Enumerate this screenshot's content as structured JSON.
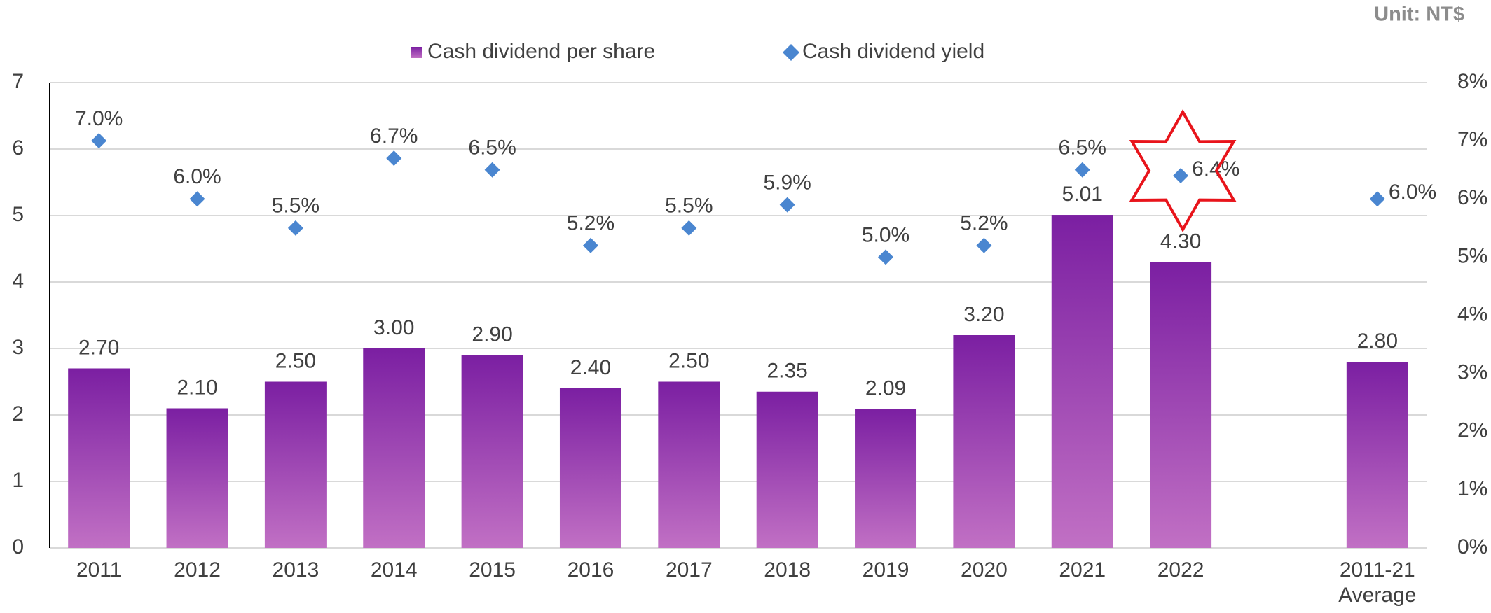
{
  "chart_data": {
    "type": "bar_scatter",
    "unit_note": "Unit: NT$",
    "categories": [
      "2011",
      "2012",
      "2013",
      "2014",
      "2015",
      "2016",
      "2017",
      "2018",
      "2019",
      "2020",
      "2021",
      "2022",
      null,
      "2011-21\nAverage"
    ],
    "series": [
      {
        "name": "Cash dividend per share",
        "color": "#7b1fa2",
        "color_bottom": "#c170c4",
        "values": [
          2.7,
          2.1,
          2.5,
          3.0,
          2.9,
          2.4,
          2.5,
          2.35,
          2.09,
          3.2,
          5.01,
          4.3,
          null,
          2.8
        ],
        "value_labels": [
          "2.70",
          "2.10",
          "2.50",
          "3.00",
          "2.90",
          "2.40",
          "2.50",
          "2.35",
          "2.09",
          "3.20",
          "5.01",
          "4.30",
          null,
          "2.80"
        ]
      },
      {
        "name": "Cash dividend yield",
        "color": "#4a86d0",
        "axis": "y2",
        "values": [
          7.0,
          6.0,
          5.5,
          6.7,
          6.5,
          5.2,
          5.5,
          5.9,
          5.0,
          5.2,
          6.5,
          6.4,
          null,
          6.0
        ],
        "value_labels": [
          "7.0%",
          "6.0%",
          "5.5%",
          "6.7%",
          "6.5%",
          "5.2%",
          "5.5%",
          "5.9%",
          "5.0%",
          "5.2%",
          "6.5%",
          "6.4%",
          null,
          "6.0%"
        ]
      }
    ],
    "ylim": [
      0,
      7
    ],
    "yticks": [
      0,
      1,
      2,
      3,
      4,
      5,
      6,
      7
    ],
    "y2lim": [
      0,
      8
    ],
    "y2ticks": [
      {
        "value": 0,
        "label": "0%"
      },
      {
        "value": 1,
        "label": "1%"
      },
      {
        "value": 2,
        "label": "2%"
      },
      {
        "value": 3,
        "label": "3%"
      },
      {
        "value": 4,
        "label": "4%"
      },
      {
        "value": 5,
        "label": "5%"
      },
      {
        "value": 6,
        "label": "6%"
      },
      {
        "value": 7,
        "label": "7%"
      },
      {
        "value": 8,
        "label": "8%"
      }
    ],
    "grid": true,
    "legend": "top"
  }
}
